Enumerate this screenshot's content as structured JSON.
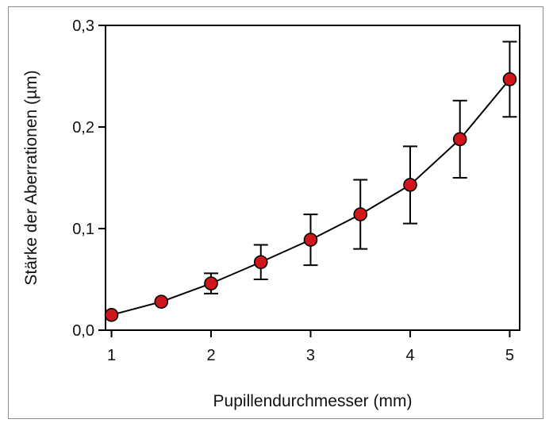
{
  "chart_data": {
    "type": "line",
    "xlabel": "Pupillendurchmesser (mm)",
    "ylabel": "Stärke der Aberrationen (µm)",
    "xlim": [
      0.94,
      5.1
    ],
    "ylim": [
      0,
      0.3
    ],
    "x_ticks": [
      1,
      2,
      3,
      4,
      5
    ],
    "x_tick_labels": [
      "1",
      "2",
      "3",
      "4",
      "5"
    ],
    "y_ticks": [
      0,
      0.1,
      0.2,
      0.3
    ],
    "y_tick_labels": [
      "0,0",
      "0,1",
      "0,2",
      "0,3"
    ],
    "grid": false,
    "marker_color": "#d0151b",
    "line_color": "#000000",
    "series": [
      {
        "x": [
          1,
          1.5,
          2,
          2.5,
          3,
          3.5,
          4,
          4.5,
          5
        ],
        "values": [
          0.015,
          0.028,
          0.046,
          0.067,
          0.089,
          0.114,
          0.143,
          0.188,
          0.247
        ],
        "error": [
          0,
          0,
          0.01,
          0.017,
          0.025,
          0.034,
          0.038,
          0.038,
          0.037
        ]
      }
    ]
  }
}
